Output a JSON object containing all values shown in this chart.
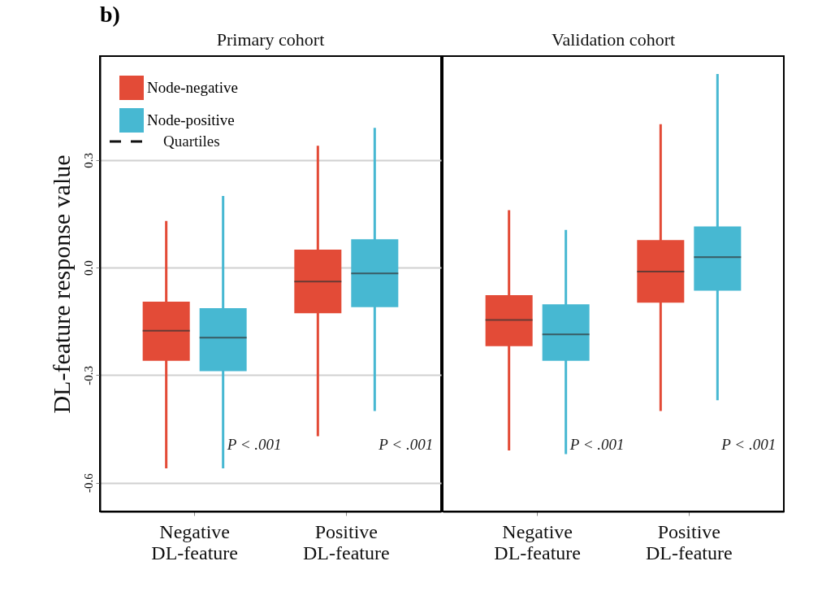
{
  "chart_data": [
    {
      "type": "box",
      "title": "Primary cohort",
      "ylabel": "DL-feature response value",
      "categories": [
        "Negative\nDL-feature",
        "Positive\nDL-feature"
      ],
      "ylim": [
        -0.68,
        0.59
      ],
      "yticks": [
        {
          "value": -0.6,
          "label": "-0.6"
        },
        {
          "value": -0.3,
          "label": "-0.3"
        },
        {
          "value": 0,
          "label": "0.0"
        },
        {
          "value": 0.3,
          "label": "0.3"
        }
      ],
      "grid": "y",
      "legend": "top left",
      "line_style": "dashed",
      "series": [
        {
          "name": "Node-negative",
          "color": "#e34b37",
          "boxes": [
            {
              "low": -0.56,
              "q1": -0.26,
              "median": -0.176,
              "q3": -0.095,
              "high": 0.13
            },
            {
              "low": -0.47,
              "q1": -0.127,
              "median": -0.039,
              "q3": 0.05,
              "high": 0.34
            }
          ]
        },
        {
          "name": "Node-positive",
          "color": "#47b8d2",
          "boxes": [
            {
              "low": -0.56,
              "q1": -0.289,
              "median": -0.195,
              "q3": -0.113,
              "high": 0.2
            },
            {
              "low": -0.4,
              "q1": -0.11,
              "median": -0.016,
              "q3": 0.079,
              "high": 0.39
            }
          ]
        }
      ],
      "annotations": [
        "b)",
        "Quartiles",
        "P < .001",
        "P < .001"
      ]
    },
    {
      "type": "box",
      "title": "Validation cohort",
      "categories": [
        "Negative\nDL-feature",
        "Positive\nDL-feature"
      ],
      "ylim": [
        -0.68,
        0.59
      ],
      "grid": "y",
      "tick_labels": "x",
      "line_style": "dashed",
      "series": [
        {
          "name": "Node-negative",
          "color": "#e34b37",
          "boxes": [
            {
              "low": -0.51,
              "q1": -0.219,
              "median": -0.146,
              "q3": -0.077,
              "high": 0.16
            },
            {
              "low": -0.4,
              "q1": -0.098,
              "median": -0.011,
              "q3": 0.077,
              "high": 0.4
            }
          ]
        },
        {
          "name": "Node-positive",
          "color": "#47b8d2",
          "boxes": [
            {
              "low": -0.52,
              "q1": -0.26,
              "median": -0.186,
              "q3": -0.102,
              "high": 0.105
            },
            {
              "low": -0.37,
              "q1": -0.064,
              "median": 0.029,
              "q3": 0.115,
              "high": 0.54
            }
          ]
        }
      ],
      "annotations": [
        "P < .001",
        "P < .001"
      ]
    }
  ]
}
